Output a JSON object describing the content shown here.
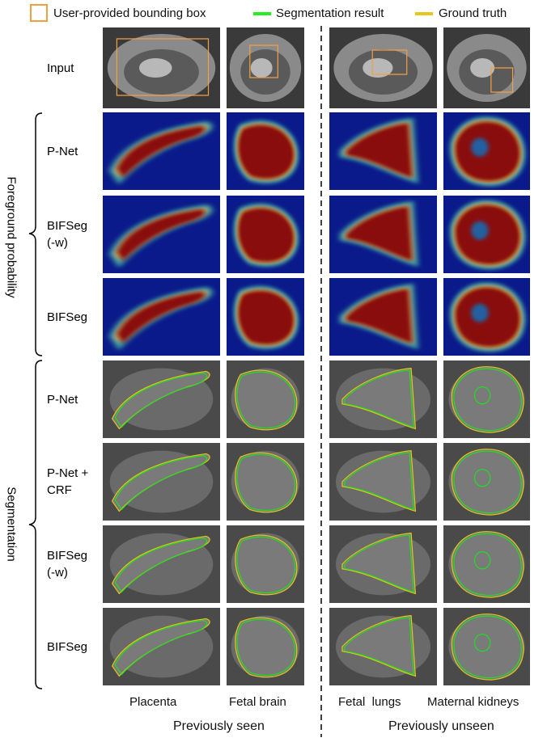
{
  "legend": [
    {
      "label": "User-provided bounding box"
    },
    {
      "label": "Segmentation result"
    },
    {
      "label": "Ground truth"
    }
  ],
  "groups": [
    {
      "label": "Foreground probability"
    },
    {
      "label": "Segmentation"
    }
  ],
  "rows": [
    {
      "label": "Input"
    },
    {
      "label": "P-Net"
    },
    {
      "label": "BIFSeg (-w)"
    },
    {
      "label": "BIFSeg"
    },
    {
      "label": "P-Net"
    },
    {
      "label": "P-Net + CRF"
    },
    {
      "label": "BIFSeg (-w)"
    },
    {
      "label": "BIFSeg"
    }
  ],
  "columns": [
    {
      "label": "Placenta"
    },
    {
      "label": "Fetal brain"
    },
    {
      "label": "Fetal  lungs"
    },
    {
      "label": "Maternal kidneys"
    }
  ],
  "footer": [
    {
      "label": "Previously seen"
    },
    {
      "label": "Previously unseen"
    }
  ]
}
